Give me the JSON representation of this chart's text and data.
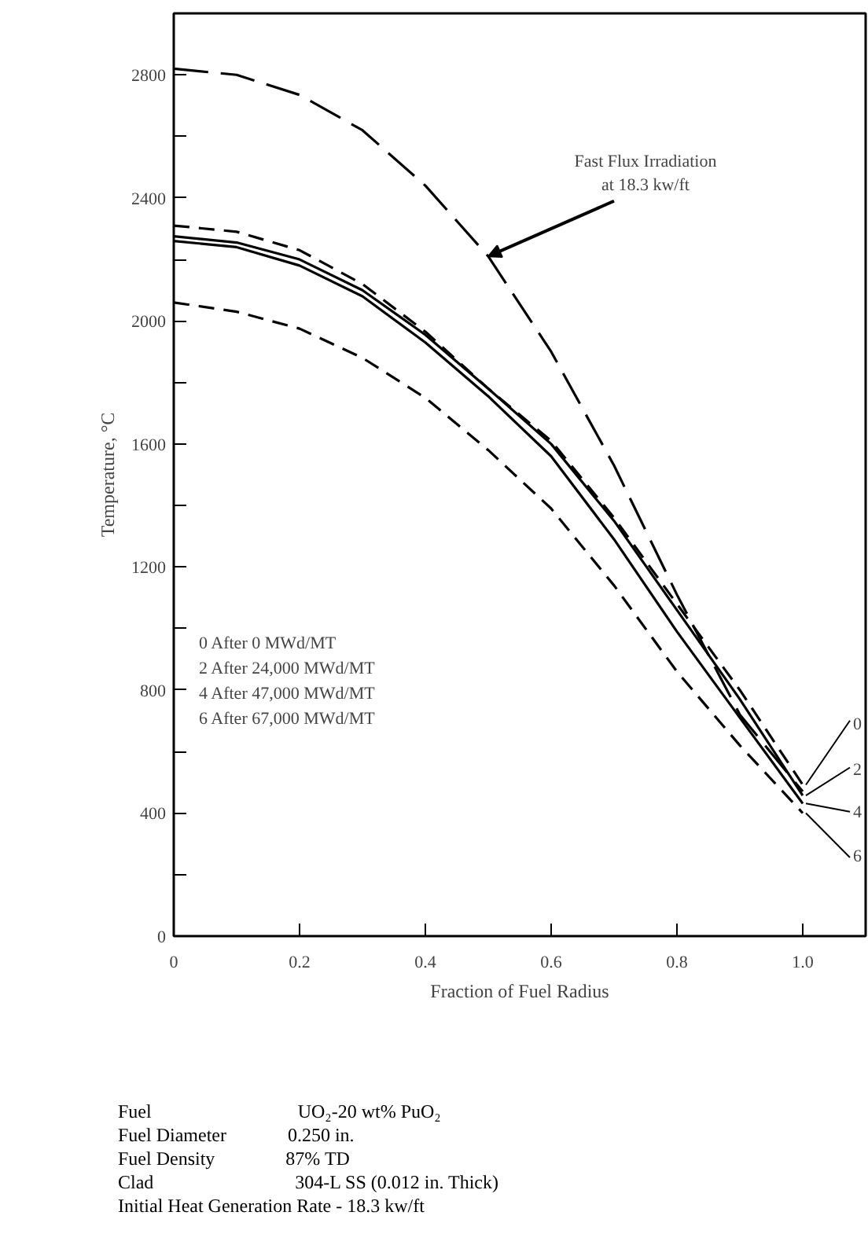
{
  "chart_data": {
    "type": "line",
    "xlabel": "Fraction of Fuel Radius",
    "ylabel": "Temperature, °C",
    "x": [
      0,
      0.1,
      0.2,
      0.3,
      0.4,
      0.5,
      0.6,
      0.7,
      0.8,
      0.9,
      1.0
    ],
    "series": [
      {
        "name": "0",
        "color": "#000000",
        "line_style": "dashed",
        "values": [
          2310,
          2290,
          2230,
          2120,
          1965,
          1780,
          1610,
          1360,
          1080,
          800,
          492
        ]
      },
      {
        "name": "2",
        "color": "#000000",
        "line_style": "solid",
        "values": [
          2275,
          2255,
          2200,
          2100,
          1955,
          1780,
          1600,
          1350,
          1060,
          770,
          457
        ]
      },
      {
        "name": "4",
        "color": "#000000",
        "line_style": "solid",
        "values": [
          2260,
          2240,
          2180,
          2080,
          1930,
          1755,
          1560,
          1290,
          990,
          710,
          431
        ]
      },
      {
        "name": "6",
        "color": "#000000",
        "line_style": "dashed",
        "values": [
          2060,
          2030,
          1975,
          1880,
          1750,
          1580,
          1390,
          1140,
          860,
          620,
          400
        ]
      },
      {
        "color": "#000000",
        "line_style": "dashed",
        "values": [
          2820,
          2800,
          2735,
          2620,
          2440,
          2210,
          1900,
          1530,
          1110,
          720,
          470
        ]
      }
    ],
    "xlim": [
      0,
      1.1
    ],
    "ylim": [
      0,
      3000
    ],
    "xticks": [
      0,
      0.2,
      0.4,
      0.6,
      0.8,
      {
        "value": 1.0,
        "label": "1.0"
      }
    ],
    "yticks": [
      0,
      {
        "value": 200,
        "label": null
      },
      400,
      {
        "value": 600,
        "label": null
      },
      800,
      {
        "value": 1000,
        "label": null
      },
      1200,
      {
        "value": 1400,
        "label": null
      },
      1600,
      {
        "value": 1800,
        "label": null
      },
      2000,
      {
        "value": 2200,
        "label": null
      },
      2400,
      {
        "value": 2600,
        "label": null
      },
      2800
    ],
    "grid": false,
    "legend": "right",
    "marker": "none",
    "annotations": [
      {
        "text": "Fast Flux Irradiation\nat 18.3 kw/ft",
        "x": 0.5,
        "y": 2210
      },
      "0   After   0          MWd/MT",
      "2   After   24,000 MWd/MT",
      "4   After   47,000 MWd/MT",
      "6   After   67,000 MWd/MT",
      "Fuel                               UO₂-20 wt% PuO₂",
      "Fuel Diameter             0.250 in.",
      "Fuel Density               87% TD",
      "Clad                              304-L SS (0.012 in. Thick)",
      "Initial Heat Generation Rate - 18.3 kw/ft"
    ]
  }
}
